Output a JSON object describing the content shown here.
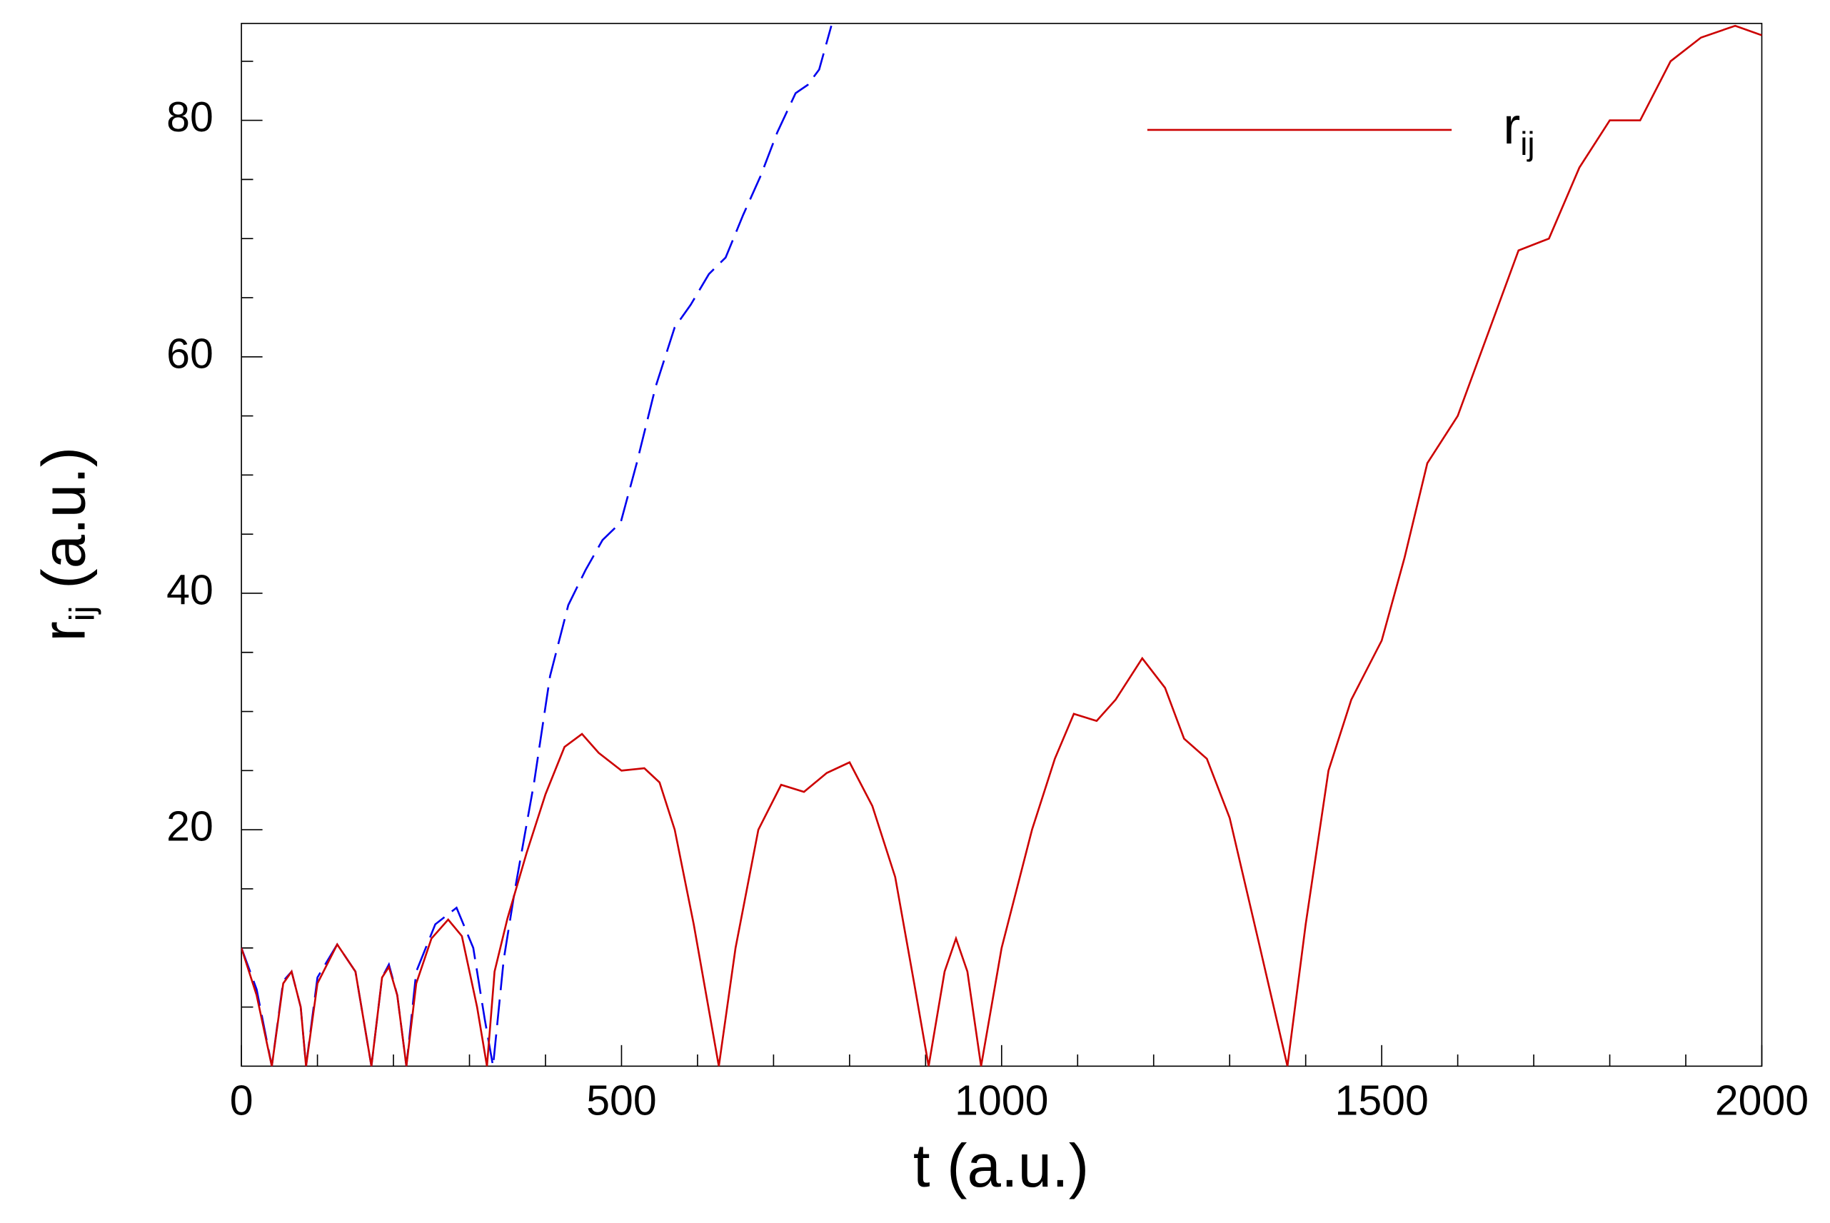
{
  "chart_data": {
    "type": "line",
    "xlabel": "t (a.u.)",
    "ylabel": [
      "r",
      "ij",
      " (a.u.)"
    ],
    "xlim": [
      0,
      2000
    ],
    "ylim": [
      0,
      88.2
    ],
    "xticks": [
      0,
      500,
      1000,
      1500,
      2000
    ],
    "xminorticks": [
      100,
      200,
      300,
      400,
      600,
      700,
      800,
      900,
      1100,
      1200,
      1300,
      1400,
      1600,
      1700,
      1800,
      1900
    ],
    "yticks": [
      20,
      40,
      60,
      80
    ],
    "yminorticks": [
      5,
      10,
      15,
      25,
      30,
      35,
      45,
      50,
      55,
      65,
      70,
      75,
      85
    ],
    "legend": "upper right",
    "series": [
      {
        "name": [
          "r",
          "ij"
        ],
        "color": "#cc0000",
        "dash": "solid",
        "x": [
          0,
          20,
          40,
          55,
          66,
          78,
          85,
          100,
          126,
          150,
          171,
          185,
          194,
          205,
          217,
          230,
          250,
          272,
          290,
          310,
          323,
          333,
          350,
          375,
          400,
          425,
          448,
          470,
          500,
          530,
          550,
          570,
          595,
          628,
          650,
          680,
          710,
          740,
          770,
          800,
          830,
          860,
          885,
          904,
          925,
          940,
          955,
          973,
          1000,
          1040,
          1070,
          1095,
          1125,
          1150,
          1185,
          1215,
          1240,
          1270,
          1300,
          1340,
          1376,
          1400,
          1430,
          1460,
          1500,
          1530,
          1560,
          1600,
          1640,
          1680,
          1720,
          1760,
          1800,
          1840,
          1880,
          1920,
          1965,
          2000
        ],
        "values": [
          10,
          6,
          0,
          7,
          8,
          5,
          0,
          7,
          10.3,
          8,
          0,
          7.5,
          8.4,
          6,
          0,
          7,
          10.8,
          12.4,
          11,
          5,
          0,
          8,
          12.5,
          18,
          23,
          27,
          28.1,
          26.5,
          25,
          25.2,
          24,
          20,
          12,
          0,
          10,
          20,
          23.8,
          23.2,
          24.8,
          25.7,
          22,
          16,
          7,
          0,
          8,
          10.8,
          8,
          0,
          10,
          20,
          26,
          29.8,
          29.2,
          31,
          34.5,
          32,
          27.7,
          26,
          21,
          10,
          0,
          12,
          25,
          31,
          36,
          43,
          51,
          55,
          62,
          69,
          70,
          76,
          80,
          80,
          85,
          87,
          88,
          87.2
        ]
      },
      {
        "color": "#0000ee",
        "dash": "dashed",
        "x": [
          0,
          20,
          40,
          55,
          66,
          78,
          85,
          100,
          126,
          150,
          171,
          185,
          194,
          205,
          217,
          230,
          255,
          283,
          305,
          320,
          331,
          345,
          360,
          385,
          406,
          430,
          453,
          475,
          499,
          520,
          545,
          570,
          591,
          615,
          637,
          660,
          683,
          705,
          729,
          745,
          760,
          776
        ],
        "values": [
          10,
          6.5,
          0,
          7.2,
          8,
          5,
          0,
          7.5,
          10.3,
          8,
          0,
          7.5,
          8.6,
          6,
          0,
          8,
          12,
          13.4,
          10,
          4,
          0,
          9,
          15,
          24,
          33,
          39,
          42,
          44.5,
          46,
          51,
          57.5,
          62.5,
          64.4,
          67,
          68.4,
          72,
          75.3,
          79,
          82.3,
          83,
          84.3,
          88
        ]
      }
    ]
  }
}
